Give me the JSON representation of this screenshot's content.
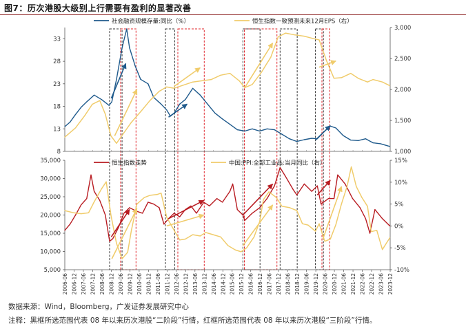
{
  "figure": {
    "title": "图7：历次港股大级别上行需要有盈利的显著改善",
    "source": "数据来源：Wind，Bloomberg，广发证券发展研究中心",
    "note": "注释：黑框所选范围代表 08 年以来历次港股“二阶段”行情，红框所选范围代表 08 年以来历次港股“三阶段”行情。",
    "colors": {
      "blue": "#1f5a8c",
      "yellow": "#f0cc6c",
      "red": "#b81c22",
      "frame_black": "#333333",
      "frame_red": "#e0242a"
    }
  },
  "chart_data": [
    {
      "type": "line",
      "panel": "top",
      "series": [
        {
          "name": "社会融资规模存量:同比（%）",
          "axis": "left",
          "x": [
            2006.42,
            2006.7,
            2007.0,
            2007.3,
            2007.6,
            2008.0,
            2008.4,
            2008.8,
            2008.95,
            2009.2,
            2009.5,
            2009.75,
            2009.9,
            2010.2,
            2010.5,
            2010.9,
            2011.2,
            2011.6,
            2011.9,
            2012.1,
            2012.3,
            2012.6,
            2012.9,
            2013.3,
            2013.7,
            2014.1,
            2014.5,
            2014.9,
            2015.3,
            2015.7,
            2016.1,
            2016.5,
            2016.9,
            2017.3,
            2017.7,
            2018.1,
            2018.5,
            2018.9,
            2019.3,
            2019.7,
            2020.0,
            2020.4,
            2020.7,
            2021.0,
            2021.4,
            2021.8,
            2022.2,
            2022.6,
            2023.0,
            2023.4,
            2023.8,
            2023.9
          ],
          "values": [
            13.5,
            14.5,
            16.2,
            17.8,
            19.0,
            20.5,
            19.5,
            18.2,
            19.0,
            24,
            31,
            35.2,
            31,
            27,
            24,
            23,
            20,
            18.5,
            17.2,
            15.8,
            16.5,
            18.5,
            19.5,
            22,
            20.5,
            18.5,
            16.5,
            15.2,
            14.0,
            12.8,
            12.5,
            13.0,
            12.5,
            13.0,
            12.8,
            11.8,
            10.8,
            10.2,
            10.6,
            10.9,
            10.8,
            12.5,
            13.6,
            13.2,
            11.5,
            10.5,
            10.4,
            10.8,
            9.9,
            9.7,
            9.2,
            9.1
          ]
        },
        {
          "name": "恒生指数一致预测未来12月EPS（右）",
          "axis": "right",
          "x": [
            2006.42,
            2007.0,
            2007.5,
            2007.9,
            2008.3,
            2008.6,
            2008.9,
            2009.2,
            2009.6,
            2010.0,
            2010.5,
            2011.0,
            2011.5,
            2011.9,
            2012.3,
            2012.8,
            2013.3,
            2013.8,
            2014.3,
            2014.8,
            2015.3,
            2015.8,
            2016.1,
            2016.5,
            2017.0,
            2017.5,
            2017.9,
            2018.3,
            2018.8,
            2019.3,
            2019.8,
            2020.1,
            2020.5,
            2020.9,
            2021.3,
            2021.8,
            2022.2,
            2022.7,
            2023.0,
            2023.5,
            2023.9
          ],
          "values": [
            1230,
            1380,
            1580,
            1760,
            1820,
            1600,
            1250,
            1130,
            1300,
            1470,
            1640,
            1820,
            1970,
            2040,
            2020,
            2070,
            2120,
            2140,
            2160,
            2230,
            2260,
            2140,
            2030,
            2080,
            2280,
            2520,
            2850,
            2910,
            2880,
            2860,
            2820,
            2800,
            2460,
            2180,
            2190,
            2260,
            2180,
            2120,
            2160,
            2120,
            2060
          ]
        }
      ],
      "y_left": {
        "min": 8,
        "max": 35.5,
        "ticks": [
          8,
          13,
          18,
          23,
          28,
          33
        ]
      },
      "y_right": {
        "min": 1000,
        "max": 3000,
        "ticks": [
          "1,000",
          "1,500",
          "2,000",
          "2,500",
          "3,000"
        ]
      }
    },
    {
      "type": "line",
      "panel": "bottom",
      "series": [
        {
          "name": "恒生指数走势",
          "axis": "left",
          "x": [
            2006.42,
            2006.7,
            2007.0,
            2007.3,
            2007.6,
            2007.83,
            2008.0,
            2008.3,
            2008.6,
            2008.83,
            2009.0,
            2009.3,
            2009.6,
            2009.9,
            2010.3,
            2010.6,
            2010.9,
            2011.2,
            2011.5,
            2011.75,
            2012.0,
            2012.3,
            2012.6,
            2012.9,
            2013.2,
            2013.5,
            2013.9,
            2014.2,
            2014.6,
            2014.9,
            2015.3,
            2015.45,
            2015.7,
            2016.0,
            2016.1,
            2016.5,
            2016.9,
            2017.3,
            2017.7,
            2018.0,
            2018.3,
            2018.7,
            2018.9,
            2019.3,
            2019.7,
            2020.0,
            2020.2,
            2020.6,
            2020.9,
            2021.1,
            2021.5,
            2021.9,
            2022.3,
            2022.6,
            2022.83,
            2023.1,
            2023.5,
            2023.9
          ],
          "values": [
            15800,
            17500,
            20000,
            22800,
            24500,
            31000,
            26500,
            24000,
            20000,
            12800,
            13500,
            16500,
            20500,
            22000,
            21000,
            20500,
            23500,
            23000,
            22000,
            17500,
            19000,
            20500,
            19500,
            21500,
            22500,
            20500,
            23500,
            22500,
            24500,
            23500,
            26500,
            28500,
            21500,
            20000,
            18500,
            20500,
            22000,
            24500,
            28000,
            33000,
            30500,
            27000,
            25500,
            28500,
            26500,
            28000,
            23000,
            24500,
            24500,
            31000,
            28500,
            24500,
            22000,
            19000,
            15000,
            21500,
            19000,
            17000
          ]
        },
        {
          "name": "中国:PPI:全部工业品:当月同比（右）",
          "axis": "right",
          "x": [
            2006.42,
            2006.9,
            2007.3,
            2007.7,
            2008.0,
            2008.4,
            2008.65,
            2008.9,
            2009.2,
            2009.5,
            2009.8,
            2010.0,
            2010.3,
            2010.7,
            2011.0,
            2011.4,
            2011.6,
            2011.9,
            2012.3,
            2012.6,
            2012.9,
            2013.3,
            2013.7,
            2014.0,
            2014.4,
            2014.8,
            2015.2,
            2015.6,
            2015.9,
            2016.2,
            2016.6,
            2016.9,
            2017.1,
            2017.4,
            2017.8,
            2018.1,
            2018.5,
            2018.9,
            2019.2,
            2019.5,
            2019.9,
            2020.1,
            2020.4,
            2020.7,
            2021.0,
            2021.3,
            2021.6,
            2021.83,
            2022.1,
            2022.4,
            2022.7,
            2022.9,
            2023.2,
            2023.5,
            2023.9
          ],
          "values": [
            3.5,
            3.0,
            2.8,
            3.0,
            5.5,
            8.5,
            10.1,
            2.5,
            -4.0,
            -7.5,
            -6.0,
            -1.0,
            5.0,
            6.5,
            7.0,
            7.2,
            7.5,
            2.0,
            -1.0,
            -3.2,
            -3.0,
            -2.0,
            -2.3,
            -1.5,
            -2.0,
            -2.5,
            -4.5,
            -5.5,
            -5.9,
            -5.0,
            -2.5,
            1.0,
            6.0,
            7.8,
            6.5,
            4.5,
            4.2,
            3.5,
            0.5,
            0.2,
            -1.2,
            0.5,
            -3.5,
            -3.0,
            0.3,
            5.0,
            9.0,
            13.5,
            9.0,
            6.5,
            4.5,
            -1.3,
            -1.0,
            -5.4,
            -2.7
          ]
        }
      ],
      "y_left": {
        "min": 5000,
        "max": 35000,
        "ticks": [
          "5,000",
          "10,000",
          "15,000",
          "20,000",
          "25,000",
          "30,000",
          "35,000"
        ]
      },
      "y_right": {
        "min": -10,
        "max": 15,
        "ticks": [
          "-10%",
          "-5%",
          "0%",
          "5%",
          "10%",
          "15%"
        ]
      }
    }
  ],
  "x_axis": {
    "min": 2006.42,
    "max": 2023.92,
    "tick_values": [
      2006.42,
      2006.92,
      2007.42,
      2007.92,
      2008.42,
      2008.92,
      2009.42,
      2009.92,
      2010.42,
      2010.92,
      2011.42,
      2011.92,
      2012.42,
      2012.92,
      2013.42,
      2013.92,
      2014.42,
      2014.92,
      2015.42,
      2015.92,
      2016.42,
      2016.92,
      2017.42,
      2017.92,
      2018.42,
      2018.92,
      2019.42,
      2019.92,
      2020.42,
      2020.92,
      2021.42,
      2021.92,
      2022.42,
      2022.92,
      2023.42,
      2023.92
    ],
    "tick_labels": [
      "2006-06",
      "2006-12",
      "2007-06",
      "2007-12",
      "2008-06",
      "2008-12",
      "2009-06",
      "2009-12",
      "2010-06",
      "2010-12",
      "2011-06",
      "2011-12",
      "2012-06",
      "2012-12",
      "2013-06",
      "2013-12",
      "2014-06",
      "2014-12",
      "2015-06",
      "2015-12",
      "2016-06",
      "2016-12",
      "2017-06",
      "2017-12",
      "2018-06",
      "2018-12",
      "2019-06",
      "2019-12",
      "2020-06",
      "2020-12",
      "2021-06",
      "2021-12",
      "2022-06",
      "2022-12",
      "2023-06",
      "2023-12"
    ]
  },
  "frames": [
    {
      "kind": "second-stage (black)",
      "start": 2008.83,
      "end": 2009.5
    },
    {
      "kind": "third-stage (red)",
      "start": 2009.42,
      "end": 2010.25
    },
    {
      "kind": "second-stage (black)",
      "start": 2011.83,
      "end": 2012.33
    },
    {
      "kind": "third-stage (red)",
      "start": 2012.5,
      "end": 2013.92
    },
    {
      "kind": "third-stage (red)",
      "start": 2016.08,
      "end": 2017.83
    },
    {
      "kind": "second-stage (black)",
      "start": 2016.0,
      "end": 2016.92
    },
    {
      "kind": "second-stage (black)",
      "start": 2018.0,
      "end": 2018.92
    },
    {
      "kind": "second-stage (black)",
      "start": 2019.9,
      "end": 2020.33
    },
    {
      "kind": "third-stage (red)",
      "start": 2020.25,
      "end": 2020.67
    }
  ],
  "trend_arrows": [
    {
      "panel": "top",
      "color": "blue",
      "from": [
        2008.92,
        19.8
      ],
      "to": [
        2009.7,
        27.5
      ]
    },
    {
      "panel": "top",
      "color": "yellow",
      "from": [
        2009.1,
        1250
      ],
      "to": [
        2010.3,
        2000
      ]
    },
    {
      "panel": "top",
      "color": "blue",
      "from": [
        2012.0,
        15.6
      ],
      "to": [
        2013.0,
        18.5
      ]
    },
    {
      "panel": "top",
      "color": "yellow",
      "from": [
        2012.3,
        2050
      ],
      "to": [
        2013.7,
        2350
      ]
    },
    {
      "panel": "top",
      "color": "yellow",
      "from": [
        2016.1,
        2030
      ],
      "to": [
        2017.6,
        2750
      ]
    },
    {
      "panel": "top",
      "color": "blue",
      "from": [
        2019.9,
        10.5
      ],
      "to": [
        2020.7,
        13.7
      ]
    },
    {
      "panel": "top",
      "color": "yellow",
      "from": [
        2020.1,
        2360
      ],
      "to": [
        2021.0,
        2460
      ]
    },
    {
      "panel": "bottom-left",
      "color": "red",
      "from": [
        2008.92,
        14000
      ],
      "to": [
        2009.9,
        21500
      ]
    },
    {
      "panel": "bottom-right",
      "color": "yellow",
      "from": [
        2008.95,
        -7.5
      ],
      "to": [
        2010.3,
        4.0
      ]
    },
    {
      "panel": "bottom-left",
      "color": "red",
      "from": [
        2012.0,
        19000
      ],
      "to": [
        2013.9,
        24000
      ]
    },
    {
      "panel": "bottom-right",
      "color": "yellow",
      "from": [
        2011.9,
        0.0
      ],
      "to": [
        2013.9,
        2.5
      ]
    },
    {
      "panel": "bottom-left",
      "color": "red",
      "from": [
        2016.0,
        20000
      ],
      "to": [
        2017.6,
        28500
      ]
    },
    {
      "panel": "bottom-right",
      "color": "yellow",
      "from": [
        2016.0,
        -4.5
      ],
      "to": [
        2017.6,
        4.8
      ]
    },
    {
      "panel": "bottom-left",
      "color": "red",
      "from": [
        2020.0,
        25500
      ],
      "to": [
        2020.7,
        29500
      ]
    },
    {
      "panel": "bottom-right",
      "color": "yellow",
      "from": [
        2020.3,
        -3.0
      ],
      "to": [
        2021.3,
        9.0
      ]
    }
  ]
}
